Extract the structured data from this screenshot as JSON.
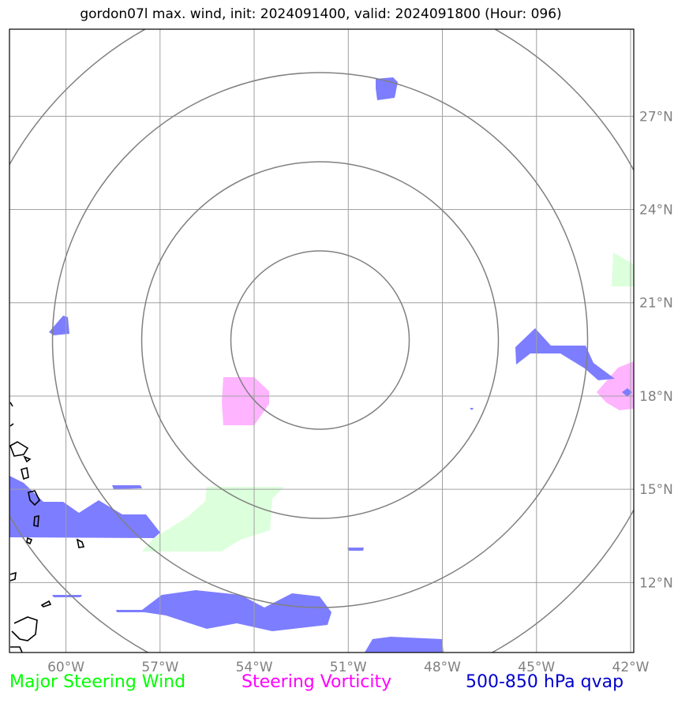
{
  "title": "gordon07l max. wind, init: 2024091400, valid: 2024091800 (Hour: 096)",
  "legend": [
    {
      "label": "Major Steering Wind",
      "color": "#00ff00"
    },
    {
      "label": "Steering Vorticity",
      "color": "#ff00ff"
    },
    {
      "label": "500-850 hPa qvap",
      "color": "#0000cc"
    }
  ],
  "map": {
    "lon_range": [
      -61.8,
      -41.9
    ],
    "lat_range": [
      9.75,
      29.8
    ],
    "lon_ticks": [
      {
        "value": -60,
        "label": "60°W"
      },
      {
        "value": -57,
        "label": "57°W"
      },
      {
        "value": -54,
        "label": "54°W"
      },
      {
        "value": -51,
        "label": "51°W"
      },
      {
        "value": -48,
        "label": "48°W"
      },
      {
        "value": -45,
        "label": "45°W"
      },
      {
        "value": -42,
        "label": "42°W"
      }
    ],
    "lat_ticks": [
      {
        "value": 27,
        "label": "27°N"
      },
      {
        "value": 24,
        "label": "24°N"
      },
      {
        "value": 21,
        "label": "21°N"
      },
      {
        "value": 18,
        "label": "18°N"
      },
      {
        "value": 15,
        "label": "15°N"
      },
      {
        "value": 12,
        "label": "12°N"
      }
    ],
    "grid": true,
    "storm_center": {
      "lon": -51.9,
      "lat": 19.8
    },
    "range_rings": 4,
    "fill_colors": {
      "wind": "#dcffdc",
      "vorticity": "#ffb4ff",
      "qvap": "#7d7dff"
    }
  }
}
